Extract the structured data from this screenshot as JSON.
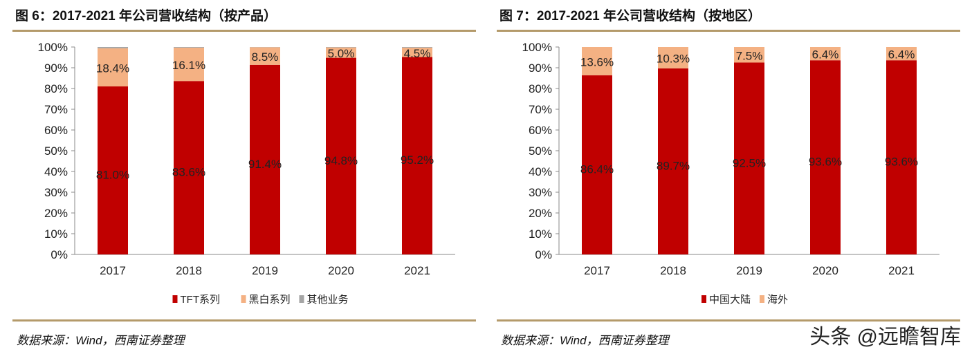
{
  "chart_data": [
    {
      "type": "bar",
      "stacked": true,
      "title": "图 6：2017-2021 年公司营收结构（按产品）",
      "categories": [
        "2017",
        "2018",
        "2019",
        "2020",
        "2021"
      ],
      "yticks": [
        "0%",
        "10%",
        "20%",
        "30%",
        "40%",
        "50%",
        "60%",
        "70%",
        "80%",
        "90%",
        "100%"
      ],
      "ylim": [
        0,
        100
      ],
      "legend_position": "bottom",
      "series": [
        {
          "name": "TFT系列",
          "color": "#c00000",
          "values": [
            81.0,
            83.6,
            91.4,
            94.8,
            95.2
          ],
          "labels": [
            "81.0%",
            "83.6%",
            "91.4%",
            "94.8%",
            "95.2%"
          ]
        },
        {
          "name": "黑白系列",
          "color": "#f4b183",
          "values": [
            18.4,
            16.1,
            8.5,
            5.0,
            4.5
          ],
          "labels": [
            "18.4%",
            "16.1%",
            "8.5%",
            "5.0%",
            "4.5%"
          ]
        },
        {
          "name": "其他业务",
          "color": "#a5a5a5",
          "values": [
            0.6,
            0.3,
            0.1,
            0.2,
            0.3
          ],
          "labels": null
        }
      ],
      "source": "数据来源：Wind，西南证券整理"
    },
    {
      "type": "bar",
      "stacked": true,
      "title": "图 7：2017-2021 年公司营收结构（按地区）",
      "categories": [
        "2017",
        "2018",
        "2019",
        "2020",
        "2021"
      ],
      "yticks": [
        "0%",
        "10%",
        "20%",
        "30%",
        "40%",
        "50%",
        "60%",
        "70%",
        "80%",
        "90%",
        "100%"
      ],
      "ylim": [
        0,
        100
      ],
      "legend_position": "bottom",
      "series": [
        {
          "name": "中国大陆",
          "color": "#c00000",
          "values": [
            86.4,
            89.7,
            92.5,
            93.6,
            93.6
          ],
          "labels": [
            "86.4%",
            "89.7%",
            "92.5%",
            "93.6%",
            "93.6%"
          ]
        },
        {
          "name": "海外",
          "color": "#f4b183",
          "values": [
            13.6,
            10.3,
            7.5,
            6.4,
            6.4
          ],
          "labels": [
            "13.6%",
            "10.3%",
            "7.5%",
            "6.4%",
            "6.4%"
          ]
        }
      ],
      "source": "数据来源：Wind，西南证券整理"
    }
  ],
  "watermark": "头条 @远瞻智库"
}
